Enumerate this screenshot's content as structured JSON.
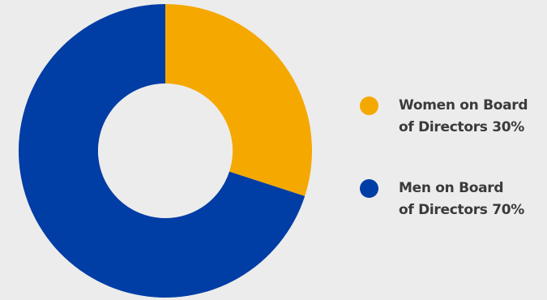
{
  "chart_data": {
    "type": "donut",
    "series": [
      {
        "name": "Women on Board of Directors",
        "value": 30,
        "color": "#f5a800",
        "label_lines": [
          "Women on Board",
          "of Directors 30%"
        ]
      },
      {
        "name": "Men on Board of Directors",
        "value": 70,
        "color": "#003da5",
        "label_lines": [
          "Men on Board",
          "of Directors 70%"
        ]
      }
    ],
    "start_angle": "12 o'clock",
    "direction": "clockwise",
    "legend_position": "right"
  }
}
